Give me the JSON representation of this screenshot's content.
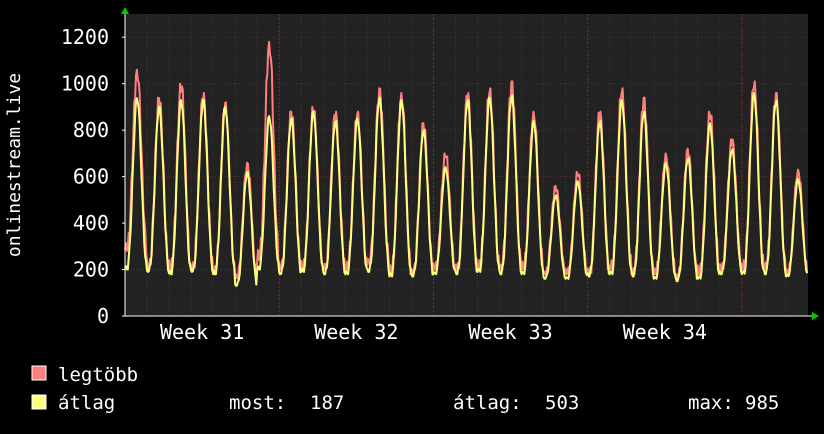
{
  "chart_data": {
    "type": "line",
    "ylabel": "onlinestream.live",
    "ylim": [
      0,
      1300
    ],
    "yticks": [
      0,
      200,
      400,
      600,
      800,
      1000,
      1200
    ],
    "x_tick_labels": [
      "Week 31",
      "Week 32",
      "Week 33",
      "Week 34"
    ],
    "grid": true,
    "legend_position": "bottom-left",
    "colors": {
      "background": "#000000",
      "plot_background": "#222222",
      "grid": "#5a2a2a",
      "text": "#ffffff",
      "max_series": "#ff7f7f",
      "avg_series": "#ffff7f",
      "axis_arrow": "#00cc00"
    },
    "days": 31,
    "series": [
      {
        "name": "legtöbb",
        "peaks": [
          1060,
          940,
          1000,
          960,
          920,
          660,
          1180,
          880,
          900,
          880,
          880,
          980,
          960,
          830,
          700,
          960,
          980,
          1010,
          880,
          560,
          620,
          880,
          980,
          940,
          700,
          720,
          880,
          760,
          1010,
          960,
          630
        ],
        "troughs": [
          280,
          200,
          200,
          200,
          180,
          160,
          240,
          200,
          200,
          200,
          200,
          220,
          180,
          180,
          200,
          200,
          200,
          200,
          200,
          180,
          180,
          180,
          200,
          180,
          180,
          160,
          180,
          200,
          200,
          200,
          180
        ]
      },
      {
        "name": "átlag",
        "peaks": [
          940,
          900,
          930,
          930,
          900,
          620,
          860,
          850,
          880,
          840,
          850,
          940,
          930,
          800,
          640,
          930,
          940,
          950,
          840,
          520,
          580,
          840,
          930,
          880,
          660,
          680,
          830,
          720,
          960,
          930,
          590
        ],
        "troughs": [
          200,
          190,
          180,
          190,
          180,
          130,
          200,
          180,
          190,
          180,
          180,
          190,
          170,
          170,
          180,
          180,
          190,
          180,
          180,
          160,
          160,
          170,
          180,
          170,
          160,
          150,
          160,
          180,
          180,
          180,
          170
        ]
      }
    ],
    "stats": {
      "most_label": "most:",
      "most_value": 187,
      "avg_label": "átlag:",
      "avg_value": 503,
      "max_label": "max:",
      "max_value": 985
    }
  }
}
